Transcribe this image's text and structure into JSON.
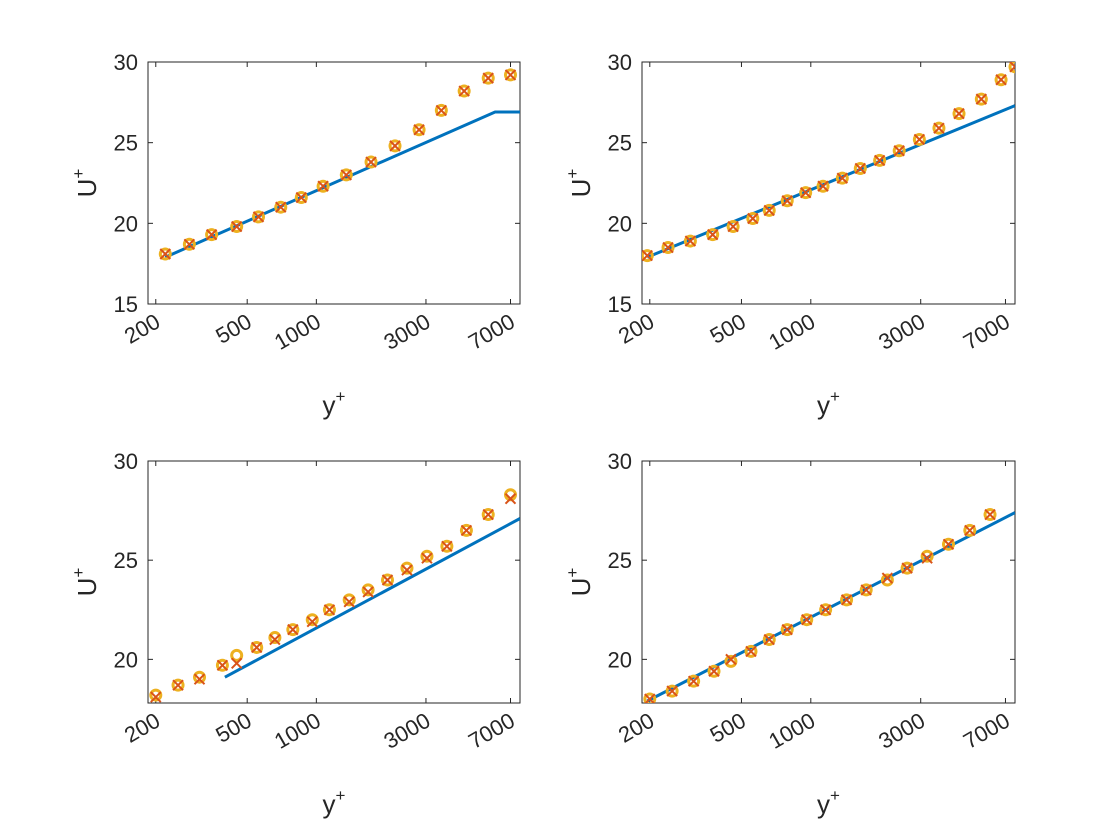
{
  "chart_data": [
    {
      "type": "scatter",
      "xlabel": "y",
      "xlabel_sup": "+",
      "ylabel": "U",
      "ylabel_sup": "+",
      "xscale": "log",
      "xlim": [
        185,
        7700
      ],
      "ylim": [
        15,
        30
      ],
      "xticks": [
        "200",
        "500",
        "1000",
        "3000",
        "7000"
      ],
      "xtick_values": [
        200,
        500,
        1000,
        3000,
        7000
      ],
      "yticks": [
        "15",
        "20",
        "25",
        "30"
      ],
      "ytick_values": [
        15,
        20,
        25,
        30
      ],
      "grid": false,
      "line": {
        "x": [
          220,
          6000,
          7700
        ],
        "y": [
          17.9,
          26.9,
          26.9
        ]
      },
      "series": [
        {
          "marker": "circle",
          "color": "#EDB120",
          "x": [
            220,
            280,
            350,
            450,
            560,
            700,
            860,
            1070,
            1350,
            1730,
            2200,
            2800,
            3500,
            4400,
            5600,
            7000
          ],
          "y": [
            18.1,
            18.7,
            19.3,
            19.8,
            20.4,
            21.0,
            21.6,
            22.3,
            23.0,
            23.8,
            24.8,
            25.8,
            27.0,
            28.2,
            29.0,
            29.2
          ]
        },
        {
          "marker": "x",
          "color": "#D95319",
          "x": [
            220,
            280,
            350,
            450,
            560,
            700,
            860,
            1070,
            1350,
            1730,
            2200,
            2800,
            3500,
            4400,
            5600,
            7000
          ],
          "y": [
            18.1,
            18.7,
            19.3,
            19.8,
            20.4,
            21.0,
            21.6,
            22.3,
            23.0,
            23.8,
            24.8,
            25.8,
            27.0,
            28.2,
            29.0,
            29.2
          ]
        }
      ]
    },
    {
      "type": "scatter",
      "xlabel": "y",
      "xlabel_sup": "+",
      "ylabel": "U",
      "ylabel_sup": "+",
      "xscale": "log",
      "xlim": [
        185,
        7700
      ],
      "ylim": [
        15,
        30
      ],
      "xticks": [
        "200",
        "500",
        "1000",
        "3000",
        "7000"
      ],
      "xtick_values": [
        200,
        500,
        1000,
        3000,
        7000
      ],
      "yticks": [
        "15",
        "20",
        "25",
        "30"
      ],
      "ytick_values": [
        15,
        20,
        25,
        30
      ],
      "grid": false,
      "line": {
        "x": [
          195,
          7700
        ],
        "y": [
          17.9,
          27.3
        ]
      },
      "series": [
        {
          "marker": "circle",
          "color": "#EDB120",
          "x": [
            195,
            240,
            300,
            375,
            460,
            560,
            660,
            790,
            950,
            1130,
            1370,
            1640,
            1990,
            2420,
            2960,
            3600,
            4400,
            5500,
            6700,
            7700
          ],
          "y": [
            18.0,
            18.5,
            18.9,
            19.3,
            19.8,
            20.3,
            20.8,
            21.4,
            21.9,
            22.3,
            22.8,
            23.4,
            23.9,
            24.5,
            25.2,
            25.9,
            26.8,
            27.7,
            28.9,
            29.7
          ]
        },
        {
          "marker": "x",
          "color": "#D95319",
          "x": [
            195,
            240,
            300,
            375,
            460,
            560,
            660,
            790,
            950,
            1130,
            1370,
            1640,
            1990,
            2420,
            2960,
            3600,
            4400,
            5500,
            6700,
            7700
          ],
          "y": [
            18.0,
            18.5,
            18.9,
            19.3,
            19.8,
            20.3,
            20.8,
            21.4,
            21.9,
            22.3,
            22.8,
            23.4,
            23.9,
            24.5,
            25.2,
            25.9,
            26.8,
            27.7,
            28.9,
            29.7
          ]
        }
      ]
    },
    {
      "type": "scatter",
      "xlabel": "y",
      "xlabel_sup": "+",
      "ylabel": "U",
      "ylabel_sup": "+",
      "xscale": "log",
      "xlim": [
        185,
        7700
      ],
      "ylim": [
        17.8,
        30
      ],
      "xticks": [
        "200",
        "500",
        "1000",
        "3000",
        "7000"
      ],
      "xtick_values": [
        200,
        500,
        1000,
        3000,
        7000
      ],
      "yticks": [
        "20",
        "25",
        "30"
      ],
      "ytick_values": [
        20,
        25,
        30
      ],
      "grid": false,
      "line": {
        "x": [
          400,
          7700
        ],
        "y": [
          19.1,
          27.1
        ]
      },
      "series": [
        {
          "marker": "circle",
          "color": "#EDB120",
          "x": [
            200,
            250,
            310,
            390,
            450,
            550,
            660,
            790,
            960,
            1140,
            1390,
            1680,
            2040,
            2480,
            3030,
            3700,
            4500,
            5600,
            7000
          ],
          "y": [
            18.2,
            18.7,
            19.1,
            19.7,
            20.2,
            20.6,
            21.1,
            21.5,
            22.0,
            22.5,
            23.0,
            23.5,
            24.0,
            24.6,
            25.2,
            25.7,
            26.5,
            27.3,
            28.3
          ]
        },
        {
          "marker": "x",
          "color": "#D95319",
          "x": [
            200,
            250,
            310,
            390,
            450,
            550,
            660,
            790,
            960,
            1140,
            1390,
            1680,
            2040,
            2480,
            3030,
            3700,
            4500,
            5600,
            7000
          ],
          "y": [
            18.1,
            18.7,
            19.0,
            19.7,
            19.8,
            20.6,
            21.0,
            21.5,
            21.9,
            22.5,
            22.9,
            23.4,
            24.0,
            24.5,
            25.1,
            25.7,
            26.5,
            27.3,
            28.1
          ]
        }
      ]
    },
    {
      "type": "scatter",
      "xlabel": "y",
      "xlabel_sup": "+",
      "ylabel": "U",
      "ylabel_sup": "+",
      "xscale": "log",
      "xlim": [
        185,
        7700
      ],
      "ylim": [
        17.8,
        30
      ],
      "xticks": [
        "200",
        "500",
        "1000",
        "3000",
        "7000"
      ],
      "xtick_values": [
        200,
        500,
        1000,
        3000,
        7000
      ],
      "yticks": [
        "20",
        "25",
        "30"
      ],
      "ytick_values": [
        20,
        25,
        30
      ],
      "grid": false,
      "line": {
        "x": [
          195,
          7700
        ],
        "y": [
          17.9,
          27.4
        ]
      },
      "series": [
        {
          "marker": "circle",
          "color": "#EDB120",
          "x": [
            200,
            250,
            310,
            380,
            450,
            550,
            660,
            790,
            960,
            1160,
            1430,
            1740,
            2150,
            2620,
            3200,
            3960,
            4900,
            6000
          ],
          "y": [
            18.0,
            18.4,
            18.9,
            19.4,
            19.9,
            20.4,
            21.0,
            21.5,
            22.0,
            22.5,
            23.0,
            23.5,
            24.0,
            24.6,
            25.2,
            25.8,
            26.5,
            27.3
          ]
        },
        {
          "marker": "x",
          "color": "#D95319",
          "x": [
            200,
            250,
            310,
            380,
            450,
            550,
            660,
            790,
            960,
            1160,
            1430,
            1740,
            2150,
            2620,
            3200,
            3960,
            4900,
            6000
          ],
          "y": [
            18.0,
            18.4,
            18.9,
            19.4,
            20.0,
            20.4,
            21.0,
            21.5,
            22.0,
            22.5,
            23.0,
            23.5,
            24.1,
            24.6,
            25.1,
            25.8,
            26.5,
            27.3
          ]
        }
      ]
    }
  ]
}
